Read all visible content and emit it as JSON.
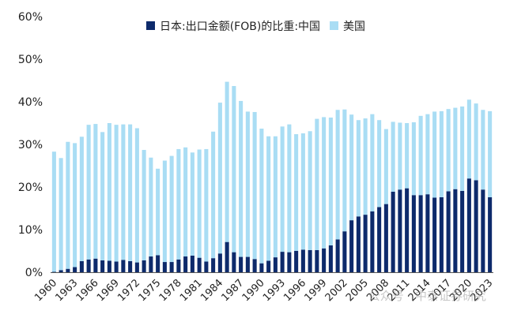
{
  "chart_data": {
    "type": "bar",
    "stacked": true,
    "ylim": [
      0,
      60
    ],
    "yticks": [
      "0%",
      "10%",
      "20%",
      "30%",
      "40%",
      "50%",
      "60%"
    ],
    "x": [
      1960,
      1961,
      1962,
      1963,
      1964,
      1965,
      1966,
      1967,
      1968,
      1969,
      1970,
      1971,
      1972,
      1973,
      1974,
      1975,
      1976,
      1977,
      1978,
      1979,
      1980,
      1981,
      1982,
      1983,
      1984,
      1985,
      1986,
      1987,
      1988,
      1989,
      1990,
      1991,
      1992,
      1993,
      1994,
      1995,
      1996,
      1997,
      1998,
      1999,
      2000,
      2001,
      2002,
      2003,
      2004,
      2005,
      2006,
      2007,
      2008,
      2009,
      2010,
      2011,
      2012,
      2013,
      2014,
      2015,
      2016,
      2017,
      2018,
      2019,
      2020,
      2021,
      2022,
      2023
    ],
    "xtick_labels": [
      "1960",
      "1963",
      "1966",
      "1969",
      "1972",
      "1975",
      "1978",
      "1981",
      "1984",
      "1987",
      "1990",
      "1993",
      "1996",
      "1999",
      "2002",
      "2005",
      "2008",
      "2011",
      "2014",
      "2017",
      "2020",
      "2023"
    ],
    "series": [
      {
        "name": "日本:出口金额(FOB)的比重:中国",
        "color": "#0d2a6b",
        "values": [
          0.1,
          0.5,
          0.8,
          1.2,
          2.6,
          3.0,
          3.2,
          2.8,
          2.7,
          2.5,
          2.9,
          2.6,
          2.3,
          2.8,
          3.7,
          4.0,
          2.4,
          2.4,
          3.0,
          3.7,
          3.9,
          3.4,
          2.5,
          3.3,
          4.4,
          7.1,
          4.7,
          3.6,
          3.6,
          3.1,
          2.1,
          2.7,
          3.5,
          4.8,
          4.7,
          5.0,
          5.3,
          5.2,
          5.2,
          5.6,
          6.3,
          7.7,
          9.6,
          12.2,
          13.1,
          13.5,
          14.3,
          15.3,
          16.0,
          18.9,
          19.4,
          19.7,
          18.1,
          18.1,
          18.3,
          17.5,
          17.6,
          19.0,
          19.5,
          19.1,
          22.0,
          21.6,
          19.4,
          17.6
        ]
      },
      {
        "name": "美国",
        "color": "#a9ddf4",
        "values": [
          28.2,
          26.3,
          29.8,
          29.1,
          29.2,
          31.6,
          31.6,
          30.1,
          32.3,
          32.1,
          31.8,
          32.1,
          31.5,
          25.9,
          23.2,
          20.3,
          23.8,
          24.9,
          25.9,
          25.6,
          24.2,
          25.4,
          26.4,
          29.7,
          35.4,
          37.6,
          39.0,
          36.6,
          34.1,
          34.5,
          31.6,
          29.2,
          28.4,
          29.4,
          30.0,
          27.4,
          27.3,
          27.9,
          30.8,
          30.8,
          30.0,
          30.4,
          28.6,
          24.8,
          22.6,
          22.6,
          22.8,
          20.4,
          17.6,
          16.4,
          15.7,
          15.3,
          17.1,
          18.6,
          18.8,
          20.2,
          20.2,
          19.3,
          19.1,
          19.8,
          18.5,
          18.0,
          18.7,
          20.2
        ]
      }
    ]
  },
  "watermark": "公众号 · 中泰证券研究"
}
